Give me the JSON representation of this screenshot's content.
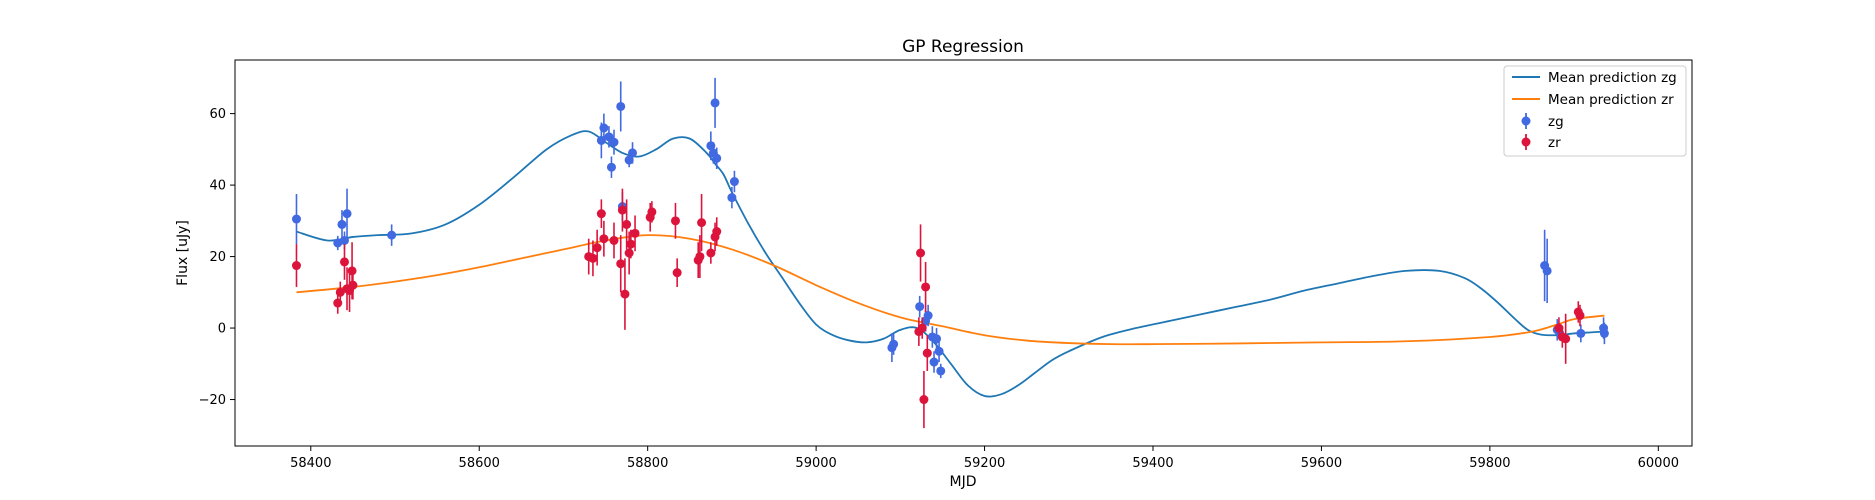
{
  "chart_data": {
    "type": "scatter",
    "title": "GP Regression",
    "xlabel": "MJD",
    "ylabel": "Flux [uJy]",
    "xlim": [
      58310,
      60040
    ],
    "ylim": [
      -33,
      75
    ],
    "xticks": [
      58400,
      58600,
      58800,
      59000,
      59200,
      59400,
      59600,
      59800,
      60000
    ],
    "yticks": [
      -20,
      0,
      20,
      40,
      60
    ],
    "legend_position": "top-right",
    "grid": false,
    "series": [
      {
        "name": "Mean prediction zg",
        "kind": "line",
        "color": "#1f77b4",
        "x": [
          58383,
          58420,
          58450,
          58480,
          58520,
          58560,
          58600,
          58640,
          58680,
          58710,
          58730,
          58750,
          58770,
          58790,
          58810,
          58830,
          58850,
          58870,
          58880,
          58890,
          58900,
          58920,
          58940,
          58960,
          58980,
          59000,
          59020,
          59040,
          59060,
          59080,
          59100,
          59120,
          59140,
          59160,
          59180,
          59200,
          59220,
          59240,
          59260,
          59280,
          59300,
          59340,
          59380,
          59420,
          59460,
          59500,
          59540,
          59580,
          59620,
          59660,
          59700,
          59740,
          59770,
          59790,
          59810,
          59830,
          59845,
          59860,
          59880,
          59900,
          59920,
          59936
        ],
        "y": [
          27,
          24.5,
          25.5,
          26,
          26.5,
          29,
          34.5,
          42,
          50,
          54,
          55,
          52,
          49,
          48,
          50,
          53,
          53,
          49,
          46,
          43,
          38,
          29,
          21,
          14,
          7,
          1,
          -2,
          -3.5,
          -4,
          -3,
          -0.5,
          0,
          -4,
          -10,
          -16,
          -19,
          -18.5,
          -16,
          -12.5,
          -9,
          -6.5,
          -2.5,
          0,
          2,
          4,
          6,
          8,
          10.5,
          12.5,
          14.5,
          16,
          16,
          14,
          11,
          7,
          2.5,
          -0.5,
          -1.8,
          -2,
          -1.5,
          -1.2,
          -1
        ]
      },
      {
        "name": "Mean prediction zr",
        "kind": "line",
        "color": "#ff7f0e",
        "x": [
          58383,
          58450,
          58500,
          58550,
          58600,
          58650,
          58700,
          58750,
          58800,
          58850,
          58900,
          58950,
          59000,
          59050,
          59100,
          59150,
          59200,
          59250,
          59300,
          59350,
          59400,
          59500,
          59600,
          59700,
          59800,
          59850,
          59880,
          59900,
          59936
        ],
        "y": [
          10,
          11.5,
          13,
          14.8,
          17,
          19.5,
          22,
          24.5,
          26,
          25,
          22,
          17.5,
          12,
          7,
          3,
          0.5,
          -2,
          -3.5,
          -4.2,
          -4.5,
          -4.5,
          -4.3,
          -4,
          -3.7,
          -2.5,
          -1,
          1,
          2.5,
          3.5
        ]
      },
      {
        "name": "zg",
        "kind": "errorbar",
        "color": "#4169e1",
        "points": [
          [
            58383,
            30.5,
            7
          ],
          [
            58432,
            23.8,
            2
          ],
          [
            58437,
            29,
            4
          ],
          [
            58440,
            24.5,
            2.5
          ],
          [
            58443,
            32,
            7
          ],
          [
            58496,
            26,
            3
          ],
          [
            58745,
            52.5,
            5
          ],
          [
            58748,
            56,
            4
          ],
          [
            58754,
            53.5,
            3
          ],
          [
            58757,
            45,
            3
          ],
          [
            58760,
            52,
            3.5
          ],
          [
            58768,
            62,
            7
          ],
          [
            58770,
            34,
            4
          ],
          [
            58778,
            47,
            2
          ],
          [
            58782,
            49,
            3
          ],
          [
            58875,
            51,
            4
          ],
          [
            58878,
            49,
            3
          ],
          [
            58880,
            63,
            7
          ],
          [
            58882,
            47.5,
            3
          ],
          [
            58900,
            36.5,
            3
          ],
          [
            58903,
            41,
            3
          ],
          [
            59090,
            -5.5,
            4
          ],
          [
            59092,
            -4.5,
            3
          ],
          [
            59123,
            6,
            3
          ],
          [
            59130,
            2,
            3
          ],
          [
            59133,
            3.5,
            3
          ],
          [
            59138,
            -2.5,
            3
          ],
          [
            59140,
            -9.5,
            3
          ],
          [
            59143,
            -3,
            3
          ],
          [
            59146,
            -6.5,
            3
          ],
          [
            59148,
            -12,
            2
          ],
          [
            59865,
            17.5,
            10
          ],
          [
            59868,
            16,
            9
          ],
          [
            59880,
            -0.5,
            3
          ],
          [
            59883,
            -1.5,
            2
          ],
          [
            59908,
            -1.5,
            2.5
          ],
          [
            59935,
            0,
            3
          ],
          [
            59936,
            -1.5,
            3
          ]
        ]
      },
      {
        "name": "zr",
        "kind": "errorbar",
        "color": "#dc143c",
        "points": [
          [
            58383,
            17.5,
            6
          ],
          [
            58432,
            7,
            3
          ],
          [
            58435,
            10,
            3
          ],
          [
            58440,
            18.5,
            5
          ],
          [
            58443,
            11,
            6
          ],
          [
            58446,
            10.5,
            6
          ],
          [
            58449,
            16,
            8
          ],
          [
            58450,
            12,
            4
          ],
          [
            58730,
            20,
            5
          ],
          [
            58735,
            19.5,
            5
          ],
          [
            58740,
            22.5,
            5
          ],
          [
            58745,
            32,
            4
          ],
          [
            58748,
            25,
            5
          ],
          [
            58760,
            24.5,
            5
          ],
          [
            58768,
            18,
            8
          ],
          [
            58770,
            33,
            6
          ],
          [
            58773,
            9.5,
            10
          ],
          [
            58775,
            29,
            7
          ],
          [
            58778,
            21,
            6
          ],
          [
            58780,
            23.5,
            4
          ],
          [
            58785,
            26.5,
            5
          ],
          [
            58803,
            31,
            4
          ],
          [
            58805,
            32.5,
            3
          ],
          [
            58833,
            30,
            5
          ],
          [
            58835,
            15.5,
            4
          ],
          [
            58860,
            19,
            5
          ],
          [
            58862,
            20,
            6
          ],
          [
            58864,
            29.5,
            8
          ],
          [
            58875,
            21,
            3
          ],
          [
            58880,
            25.5,
            4
          ],
          [
            58882,
            27,
            4
          ],
          [
            59122,
            -1,
            4
          ],
          [
            59124,
            21,
            8
          ],
          [
            59126,
            0,
            3
          ],
          [
            59128,
            -20,
            8
          ],
          [
            59130,
            11.5,
            7
          ],
          [
            59132,
            -7,
            5
          ],
          [
            59882,
            0,
            3
          ],
          [
            59886,
            -2.5,
            3
          ],
          [
            59890,
            -3,
            7
          ],
          [
            59905,
            4.5,
            3
          ],
          [
            59907,
            3.5,
            3
          ]
        ]
      }
    ]
  }
}
